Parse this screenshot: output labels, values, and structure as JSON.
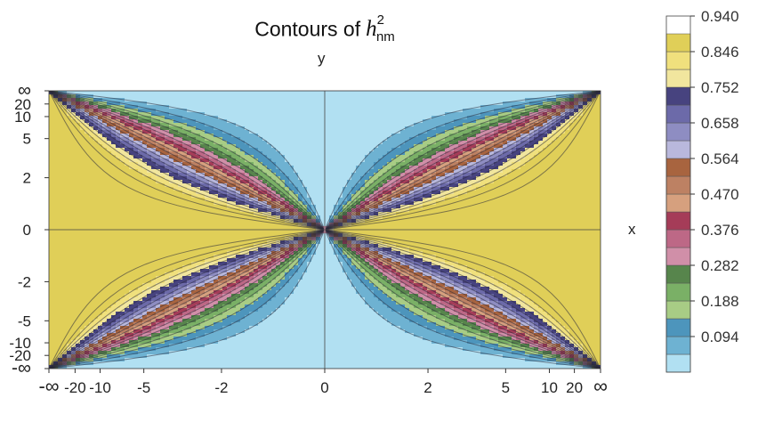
{
  "chart_data": {
    "type": "contour",
    "title": {
      "prefix": "Contours of",
      "symbol": "h",
      "subscript": "nm",
      "superscript": "2"
    },
    "xlabel": "x",
    "ylabel": "y",
    "x_scale": "compactified (arctan-like), infinity at edges",
    "y_scale": "compactified (arctan-like), infinity at edges",
    "x_ticks": [
      "-∞",
      "-20",
      "-10",
      "-5",
      "-2",
      "0",
      "2",
      "5",
      "10",
      "20",
      "∞"
    ],
    "y_ticks": [
      "∞",
      "20",
      "10",
      "5",
      "2",
      "0",
      "-2",
      "-5",
      "-10",
      "-20",
      "-∞"
    ],
    "x_tick_values": [
      null,
      -20,
      -10,
      -5,
      -2,
      0,
      2,
      5,
      10,
      20,
      null
    ],
    "y_tick_values": [
      null,
      20,
      10,
      5,
      2,
      0,
      -2,
      -5,
      -10,
      -20,
      null
    ],
    "color_levels": [
      0.0,
      0.047,
      0.094,
      0.141,
      0.188,
      0.235,
      0.282,
      0.329,
      0.376,
      0.423,
      0.47,
      0.517,
      0.564,
      0.611,
      0.658,
      0.705,
      0.752,
      0.799,
      0.846,
      0.893,
      0.94,
      0.987
    ],
    "colorbar_labels": [
      "0.940",
      "0.846",
      "0.752",
      "0.658",
      "0.564",
      "0.470",
      "0.376",
      "0.282",
      "0.188",
      "0.094"
    ],
    "colorbar_label_values": [
      0.94,
      0.846,
      0.752,
      0.658,
      0.564,
      0.47,
      0.376,
      0.282,
      0.188,
      0.094
    ],
    "band_colors": [
      "#b1e0f2",
      "#6eb2d2",
      "#4d95bc",
      "#a8cc85",
      "#7ab066",
      "#57854c",
      "#d08fa8",
      "#bd6886",
      "#a53c58",
      "#d6a07e",
      "#bd8163",
      "#a8643f",
      "#b9b8dc",
      "#8e8dc2",
      "#6c6aa9",
      "#47437f",
      "#f1e69e",
      "#f0e07d",
      "#e0cf58"
    ],
    "grid": false
  }
}
